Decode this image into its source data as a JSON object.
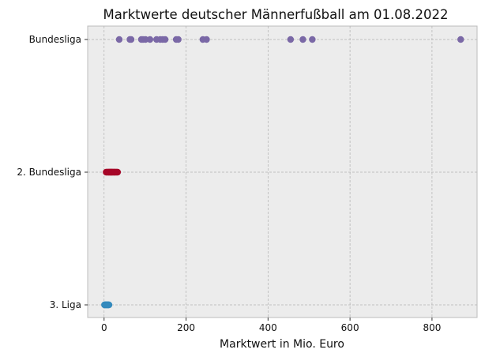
{
  "chart_data": {
    "type": "scatter",
    "title": "Marktwerte deutscher Männerfußball am 01.08.2022",
    "xlabel": "Marktwert in Mio. Euro",
    "ylabel": "",
    "xlim": [
      -40,
      910
    ],
    "xticks": [
      0,
      200,
      400,
      600,
      800
    ],
    "grid": true,
    "categories": [
      "3. Liga",
      "2. Bundesliga",
      "Bundesliga"
    ],
    "series": [
      {
        "category": "Bundesliga",
        "color": "#7a68a6",
        "values": [
          37,
          63,
          66,
          91,
          95,
          101,
          112,
          128,
          137,
          143,
          149,
          176,
          181,
          241,
          250,
          455,
          485,
          508,
          870
        ]
      },
      {
        "category": "2. Bundesliga",
        "color": "#a60628",
        "values": [
          5,
          7,
          9,
          11,
          12,
          14,
          15,
          16,
          18,
          19,
          20,
          22,
          24,
          25,
          27,
          29,
          31,
          33
        ]
      },
      {
        "category": "3. Liga",
        "color": "#348abd",
        "values": [
          1,
          2,
          3,
          4,
          5,
          6,
          7,
          8,
          9,
          10,
          11,
          12
        ]
      }
    ]
  }
}
